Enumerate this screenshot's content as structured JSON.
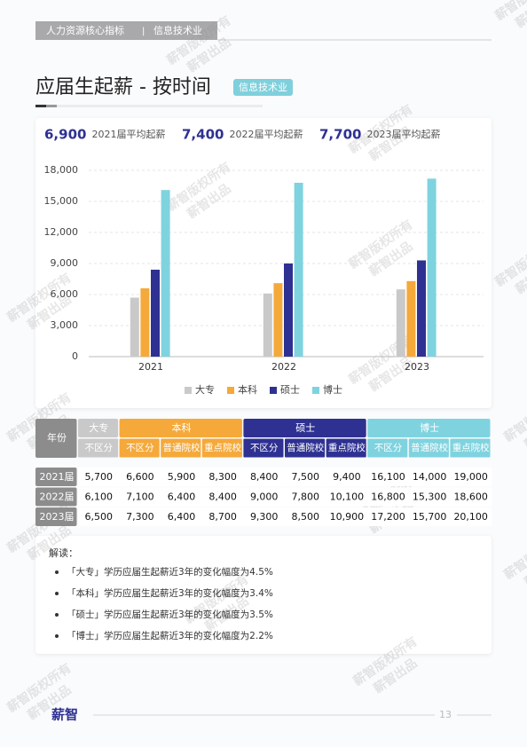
{
  "header": {
    "title": "人力资源核心指标",
    "separator": "|",
    "section": "信息技术业"
  },
  "page_title": "应届生起薪 - 按时间",
  "tag": "信息技术业",
  "stats": [
    {
      "value": "6,900",
      "label": "2021届平均起薪"
    },
    {
      "value": "7,400",
      "label": "2022届平均起薪"
    },
    {
      "value": "7,700",
      "label": "2023届平均起薪"
    }
  ],
  "chart_data": {
    "type": "bar",
    "categories": [
      "2021",
      "2022",
      "2023"
    ],
    "series": [
      {
        "name": "大专",
        "color": "#c9c9c9",
        "values": [
          5700,
          6100,
          6500
        ]
      },
      {
        "name": "本科",
        "color": "#f5a93a",
        "values": [
          6600,
          7100,
          7300
        ]
      },
      {
        "name": "硕士",
        "color": "#2e3192",
        "values": [
          8400,
          9000,
          9300
        ]
      },
      {
        "name": "博士",
        "color": "#7fd3df",
        "values": [
          16100,
          16800,
          17200
        ]
      }
    ],
    "ylim": [
      0,
      18000
    ],
    "yticks": [
      0,
      {
        "value": 3000,
        "label": "3,000"
      },
      {
        "value": 6000,
        "label": "6,000"
      },
      {
        "value": 9000,
        "label": "9,000"
      },
      {
        "value": 12000,
        "label": "12,000"
      },
      {
        "value": 15000,
        "label": "15,000"
      },
      {
        "value": 18000,
        "label": "18,000"
      }
    ],
    "grid": true,
    "legend": "bottom"
  },
  "table": {
    "year_header": "年份",
    "groups": [
      {
        "name": "大专",
        "columns": [
          "不区分"
        ]
      },
      {
        "name": "本科",
        "columns": [
          "不区分",
          "普通院校",
          "重点院校"
        ]
      },
      {
        "name": "硕士",
        "columns": [
          "不区分",
          "普通院校",
          "重点院校"
        ]
      },
      {
        "name": "博士",
        "columns": [
          "不区分",
          "普通院校",
          "重点院校"
        ]
      }
    ],
    "rows": [
      {
        "year": "2021届",
        "cells": [
          "5,700",
          "6,600",
          "5,900",
          "8,300",
          "8,400",
          "7,500",
          "9,400",
          "16,100",
          "14,000",
          "19,000"
        ]
      },
      {
        "year": "2022届",
        "cells": [
          "6,100",
          "7,100",
          "6,400",
          "8,400",
          "9,000",
          "7,800",
          "10,100",
          "16,800",
          "15,300",
          "18,600"
        ]
      },
      {
        "year": "2023届",
        "cells": [
          "6,500",
          "7,300",
          "6,400",
          "8,700",
          "9,300",
          "8,500",
          "10,900",
          "17,200",
          "15,700",
          "20,100"
        ]
      }
    ]
  },
  "interpretation": {
    "title": "解读：",
    "items": [
      "「大专」学历应届生起薪近3年的变化幅度为4.5%",
      "「本科」学历应届生起薪近3年的变化幅度为3.4%",
      "「硕士」学历应届生起薪近3年的变化幅度为3.5%",
      "「博士」学历应届生起薪近3年的变化幅度为2.2%"
    ]
  },
  "footer": {
    "logo": "薪智",
    "page": "13"
  },
  "watermark": [
    "薪智版权所有",
    "薪智出品"
  ]
}
